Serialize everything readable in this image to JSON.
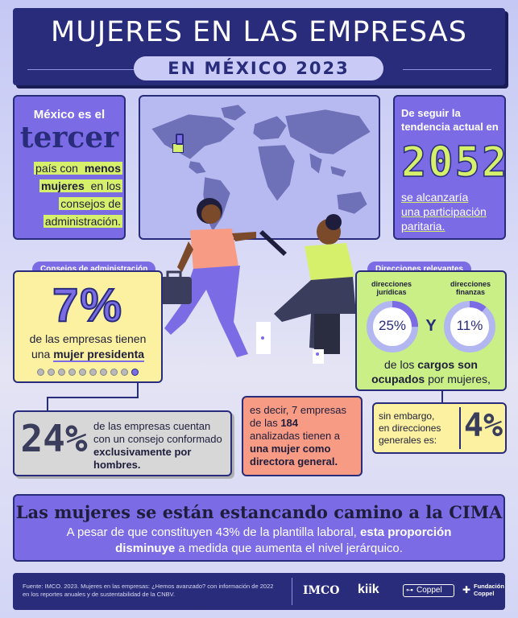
{
  "title": "MUJERES EN LAS EMPRESAS",
  "subtitle": "EN MÉXICO 2023",
  "mexico_card": {
    "line1": "México es el",
    "big": "tercer",
    "t1": "país con ",
    "t2": "menos",
    "t3": "mujeres",
    "t4": " en los",
    "t5": "consejos de",
    "t6": "administración."
  },
  "trend_card": {
    "lead": "De seguir la tendencia actual en",
    "year": "2052",
    "t1": "se alcanzaría",
    "t2": "una participación",
    "t3": "paritaria."
  },
  "consejos": {
    "label": "Consejos de administración",
    "percent": "7%",
    "t1": "de las empresas tienen",
    "t2": "una ",
    "t3": "mujer presidenta",
    "dots_total": 10,
    "dots_on": 1
  },
  "direcciones": {
    "label": "Direcciones relevantes",
    "left_label": "direcciones jurídicas",
    "left_value": "25%",
    "left_fraction": 0.25,
    "conj": "Y",
    "right_label": "direcciones finanzas",
    "right_value": "11%",
    "right_fraction": 0.11,
    "t1": "de los ",
    "t2": "cargos son",
    "t3": "ocupados",
    "t4": " por mujeres,"
  },
  "exclusive": {
    "percent": "24%",
    "t1": "de las empresas cuentan",
    "t2": "con un consejo conformado",
    "t3": "exclusivamente por",
    "t4": "hombres."
  },
  "directora": {
    "t1": "es decir, ",
    "t2": "7 empresas",
    "t3": "de las ",
    "t4": "184",
    "t5": "analizadas tienen a",
    "t6": "una mujer como",
    "t7": "directora general."
  },
  "generales": {
    "t1": "sin embargo,",
    "t2": "en direcciones",
    "t3": "generales es:",
    "percent": "4%"
  },
  "banner": {
    "headline": "Las mujeres se están estancando camino a la CIMA",
    "t1": "A pesar de que constituyen  43% de la plantilla laboral, ",
    "t2": "esta proporción",
    "t3": "disminuye",
    "t4": " a medida que aumenta el nivel jerárquico."
  },
  "footer": {
    "source1": "Fuente:  IMCO. 2023. Mujeres en las empresas: ¿Hemos avanzado? con información de 2022",
    "source2": "en los reportes anuales y de sustentabilidad de la CNBV.",
    "logo1": "IMCO",
    "logo2": "kiik",
    "logo3": "Coppel",
    "logo4a": "Fundación",
    "logo4b": "Coppel"
  },
  "colors": {
    "navy": "#282c7a",
    "purple": "#7b6ce6",
    "lime": "#d6f06b",
    "yellow": "#fbf1a0",
    "salmon": "#f79b84",
    "gray": "#d7d7d7",
    "green": "#c9ef86",
    "lavender": "#c9cbf3"
  },
  "icons": [
    "world-map",
    "map-pin-icon",
    "briefcase-icon",
    "laptop-icon",
    "coppel-key-icon"
  ]
}
